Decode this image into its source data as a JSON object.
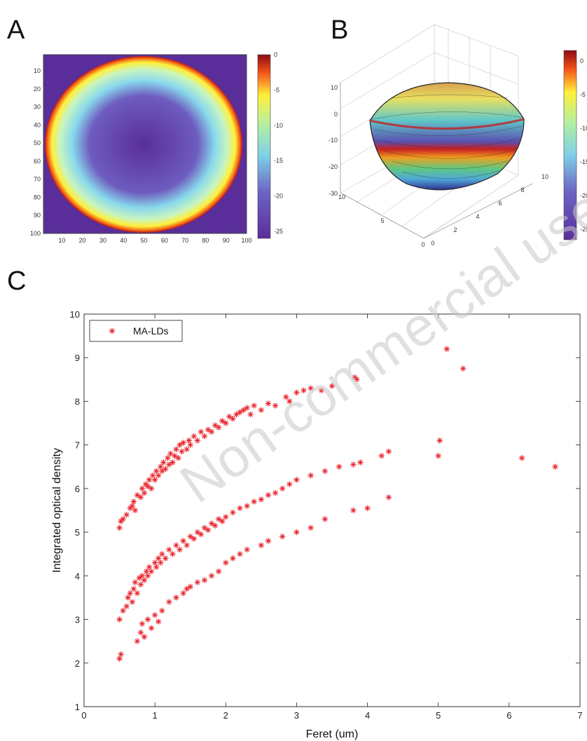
{
  "panels": {
    "a": "A",
    "b": "B",
    "c": "C"
  },
  "watermark": "Non-commercial use",
  "colors": {
    "marker": "#e8222a",
    "background": "#ffffff",
    "colormap_low": "#5a2e9a",
    "colormap_high": "#8c0c10"
  },
  "chart_data": [
    {
      "id": "A",
      "type": "heatmap",
      "title": "",
      "xticks": [
        "10",
        "20",
        "30",
        "40",
        "50",
        "60",
        "70",
        "80",
        "90",
        "100"
      ],
      "yticks": [
        "10",
        "20",
        "30",
        "40",
        "50",
        "60",
        "70",
        "80",
        "90",
        "100"
      ],
      "xlim": [
        1,
        100
      ],
      "ylim": [
        1,
        100
      ],
      "description_values": {
        "outside_value": -25,
        "rim_value": 0,
        "center_value": -25,
        "center": [
          50,
          50
        ],
        "radius": 46
      },
      "colorbar_ticks": [
        "0",
        "-5",
        "-10",
        "-15",
        "-20",
        "-25"
      ],
      "colorbar_range": [
        -26,
        0
      ]
    },
    {
      "id": "B",
      "type": "surface",
      "title": "",
      "zticks": [
        "10",
        "0",
        "-10",
        "-20",
        "-30"
      ],
      "xticks": [
        "0",
        "2",
        "4",
        "6",
        "8",
        "10"
      ],
      "yticks": [
        "0",
        "5",
        "10"
      ],
      "colorbar_ticks": [
        "0",
        "-5",
        "-10",
        "-15",
        "-20",
        "-25"
      ]
    },
    {
      "id": "C",
      "type": "scatter",
      "title": "",
      "xlabel": "Feret (um)",
      "ylabel": "Integrated optical density",
      "xlim": [
        0,
        7
      ],
      "ylim": [
        1,
        10
      ],
      "xticks": [
        "0",
        "1",
        "2",
        "3",
        "4",
        "5",
        "6",
        "7"
      ],
      "yticks": [
        "1",
        "2",
        "3",
        "4",
        "5",
        "6",
        "7",
        "8",
        "9",
        "10"
      ],
      "grid": false,
      "legend_position": "top-left",
      "series": [
        {
          "name": "MA-LDs",
          "marker": "*",
          "color": "#e8222a",
          "points": [
            [
              0.5,
              5.1
            ],
            [
              0.52,
              5.25
            ],
            [
              0.55,
              5.3
            ],
            [
              0.6,
              5.4
            ],
            [
              0.65,
              5.55
            ],
            [
              0.68,
              5.6
            ],
            [
              0.7,
              5.7
            ],
            [
              0.72,
              5.5
            ],
            [
              0.75,
              5.85
            ],
            [
              0.8,
              5.8
            ],
            [
              0.82,
              6.0
            ],
            [
              0.85,
              5.9
            ],
            [
              0.87,
              6.1
            ],
            [
              0.9,
              6.05
            ],
            [
              0.92,
              6.2
            ],
            [
              0.95,
              6.0
            ],
            [
              0.97,
              6.3
            ],
            [
              1.0,
              6.2
            ],
            [
              1.02,
              6.4
            ],
            [
              1.05,
              6.3
            ],
            [
              1.08,
              6.5
            ],
            [
              1.1,
              6.4
            ],
            [
              1.12,
              6.6
            ],
            [
              1.15,
              6.45
            ],
            [
              1.18,
              6.7
            ],
            [
              1.2,
              6.55
            ],
            [
              1.22,
              6.8
            ],
            [
              1.25,
              6.6
            ],
            [
              1.28,
              6.75
            ],
            [
              1.3,
              6.9
            ],
            [
              1.33,
              6.7
            ],
            [
              1.35,
              7.0
            ],
            [
              1.38,
              6.85
            ],
            [
              1.4,
              7.05
            ],
            [
              1.45,
              6.9
            ],
            [
              1.48,
              7.1
            ],
            [
              1.5,
              7.0
            ],
            [
              1.55,
              7.2
            ],
            [
              1.6,
              7.1
            ],
            [
              1.65,
              7.3
            ],
            [
              1.7,
              7.2
            ],
            [
              1.75,
              7.35
            ],
            [
              1.8,
              7.3
            ],
            [
              1.85,
              7.45
            ],
            [
              1.9,
              7.4
            ],
            [
              1.95,
              7.55
            ],
            [
              2.0,
              7.5
            ],
            [
              2.05,
              7.65
            ],
            [
              2.1,
              7.6
            ],
            [
              2.15,
              7.7
            ],
            [
              2.2,
              7.75
            ],
            [
              2.25,
              7.8
            ],
            [
              2.3,
              7.85
            ],
            [
              2.35,
              7.7
            ],
            [
              2.4,
              7.9
            ],
            [
              2.5,
              7.8
            ],
            [
              2.6,
              7.95
            ],
            [
              2.7,
              7.9
            ],
            [
              2.85,
              8.1
            ],
            [
              2.9,
              8.0
            ],
            [
              3.0,
              8.2
            ],
            [
              3.1,
              8.25
            ],
            [
              3.2,
              8.3
            ],
            [
              3.35,
              8.25
            ],
            [
              3.5,
              8.35
            ],
            [
              3.82,
              8.55
            ],
            [
              3.85,
              8.5
            ],
            [
              5.12,
              9.2
            ],
            [
              5.35,
              8.75
            ],
            [
              0.5,
              2.1
            ],
            [
              0.52,
              2.2
            ],
            [
              0.5,
              3.0
            ],
            [
              0.55,
              3.2
            ],
            [
              0.6,
              3.3
            ],
            [
              0.62,
              3.5
            ],
            [
              0.65,
              3.6
            ],
            [
              0.68,
              3.4
            ],
            [
              0.7,
              3.7
            ],
            [
              0.72,
              3.85
            ],
            [
              0.75,
              3.6
            ],
            [
              0.78,
              3.95
            ],
            [
              0.8,
              3.8
            ],
            [
              0.82,
              4.0
            ],
            [
              0.85,
              3.9
            ],
            [
              0.88,
              4.1
            ],
            [
              0.9,
              4.0
            ],
            [
              0.92,
              4.2
            ],
            [
              0.95,
              4.1
            ],
            [
              1.0,
              4.3
            ],
            [
              1.02,
              4.2
            ],
            [
              1.05,
              4.4
            ],
            [
              1.08,
              4.3
            ],
            [
              1.1,
              4.5
            ],
            [
              1.15,
              4.4
            ],
            [
              1.2,
              4.6
            ],
            [
              1.25,
              4.5
            ],
            [
              1.3,
              4.7
            ],
            [
              1.35,
              4.6
            ],
            [
              1.4,
              4.8
            ],
            [
              1.45,
              4.7
            ],
            [
              1.5,
              4.9
            ],
            [
              1.55,
              4.85
            ],
            [
              1.6,
              5.0
            ],
            [
              1.65,
              4.95
            ],
            [
              1.7,
              5.1
            ],
            [
              1.75,
              5.05
            ],
            [
              1.8,
              5.2
            ],
            [
              1.85,
              5.15
            ],
            [
              1.9,
              5.3
            ],
            [
              1.95,
              5.25
            ],
            [
              2.0,
              5.35
            ],
            [
              2.1,
              5.45
            ],
            [
              2.2,
              5.55
            ],
            [
              2.3,
              5.6
            ],
            [
              2.4,
              5.7
            ],
            [
              2.5,
              5.75
            ],
            [
              2.6,
              5.85
            ],
            [
              2.7,
              5.9
            ],
            [
              2.8,
              6.0
            ],
            [
              2.9,
              6.1
            ],
            [
              3.0,
              6.2
            ],
            [
              3.2,
              6.3
            ],
            [
              3.4,
              6.4
            ],
            [
              3.6,
              6.5
            ],
            [
              3.8,
              6.55
            ],
            [
              3.9,
              6.6
            ],
            [
              4.2,
              6.75
            ],
            [
              4.3,
              6.85
            ],
            [
              5.0,
              6.75
            ],
            [
              5.02,
              7.1
            ],
            [
              6.18,
              6.7
            ],
            [
              6.65,
              6.5
            ],
            [
              0.75,
              2.5
            ],
            [
              0.8,
              2.7
            ],
            [
              0.82,
              2.9
            ],
            [
              0.85,
              2.6
            ],
            [
              0.9,
              3.0
            ],
            [
              0.95,
              2.8
            ],
            [
              1.0,
              3.1
            ],
            [
              1.05,
              2.95
            ],
            [
              1.1,
              3.2
            ],
            [
              1.2,
              3.4
            ],
            [
              1.3,
              3.5
            ],
            [
              1.4,
              3.6
            ],
            [
              1.45,
              3.7
            ],
            [
              1.5,
              3.75
            ],
            [
              1.6,
              3.85
            ],
            [
              1.7,
              3.9
            ],
            [
              1.8,
              4.0
            ],
            [
              1.9,
              4.1
            ],
            [
              2.0,
              4.3
            ],
            [
              2.1,
              4.4
            ],
            [
              2.2,
              4.5
            ],
            [
              2.3,
              4.6
            ],
            [
              2.5,
              4.7
            ],
            [
              2.6,
              4.8
            ],
            [
              2.8,
              4.9
            ],
            [
              3.0,
              5.0
            ],
            [
              3.2,
              5.1
            ],
            [
              3.4,
              5.3
            ],
            [
              3.8,
              5.5
            ],
            [
              4.0,
              5.55
            ],
            [
              4.3,
              5.8
            ]
          ]
        }
      ]
    }
  ]
}
